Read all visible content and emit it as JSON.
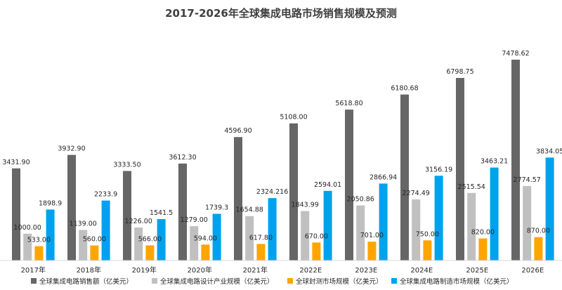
{
  "chart_data": {
    "type": "bar",
    "title": "2017-2026年全球集成电路市场销售规模及预测",
    "xlabel": "",
    "ylabel": "",
    "ylim": [
      0,
      8000
    ],
    "grid": false,
    "legend_position": "bottom",
    "categories": [
      "2017年",
      "2018年",
      "2019年",
      "2020年",
      "2021年",
      "2022E",
      "2023E",
      "2024E",
      "2025E",
      "2026E"
    ],
    "series": [
      {
        "name": "全球集成电路销售额（亿美元）",
        "color": "#666666",
        "values": [
          3431.9,
          3932.9,
          3333.5,
          3612.3,
          4596.9,
          5108.0,
          5618.8,
          6180.68,
          6798.75,
          7478.62
        ],
        "labels": [
          "3431.90",
          "3932.90",
          "3333.50",
          "3612.30",
          "4596.90",
          "5108.00",
          "5618.80",
          "6180.68",
          "6798.75",
          "7478.62"
        ]
      },
      {
        "name": "全球集成电路设计产业规模（亿美元）",
        "color": "#c0c0c0",
        "values": [
          1000.0,
          1139.0,
          1226.0,
          1279.0,
          1654.88,
          1843.99,
          2050.86,
          2274.49,
          2515.54,
          2774.57
        ],
        "labels": [
          "1000.00",
          "1139.00",
          "1226.00",
          "1279.00",
          "1654.88",
          "1843.99",
          "2050.86",
          "2274.49",
          "2515.54",
          "2774.57"
        ]
      },
      {
        "name": "全球封测市场规模（亿美元）",
        "color": "#ffa500",
        "values": [
          533.0,
          560.0,
          566.0,
          594.0,
          617.8,
          670.0,
          701.0,
          750.0,
          820.0,
          870.0
        ],
        "labels": [
          "533.00",
          "560.00",
          "566.00",
          "594.00",
          "617.80",
          "670.00",
          "701.00",
          "750.00",
          "820.00",
          "870.00"
        ]
      },
      {
        "name": "全球集成电路制造市场规模（亿美元）",
        "color": "#00a2ed",
        "values": [
          1898.9,
          2233.9,
          1541.5,
          1739.3,
          2324.216,
          2594.01,
          2866.94,
          3156.19,
          3463.21,
          3834.05
        ],
        "labels": [
          "1898.9",
          "2233.9",
          "1541.5",
          "1739.3",
          "2324.216",
          "2594.01",
          "2866.94",
          "3156.19",
          "3463.21",
          "3834.05"
        ]
      }
    ]
  }
}
